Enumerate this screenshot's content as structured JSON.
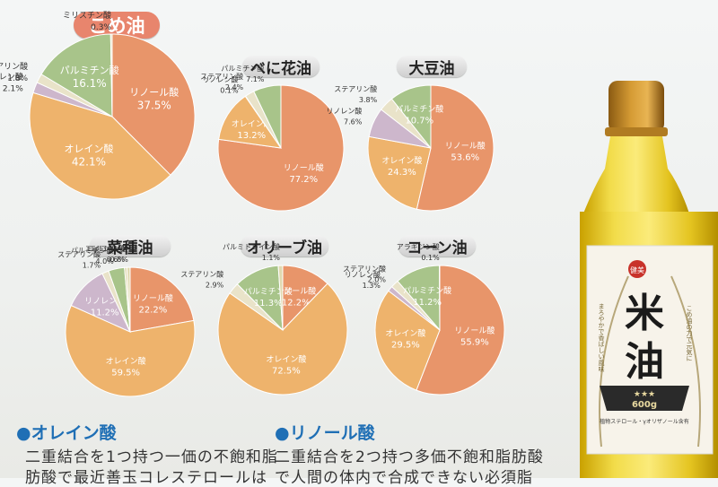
{
  "colors": {
    "linoleic": "#e8956a",
    "oleic": "#eeb36c",
    "palmitic": "#a8c48a",
    "linolenic": "#cdb7cc",
    "stearic": "#e9e3c9",
    "minor": "#e0d9b0",
    "title_pill_primary": "#e8856d",
    "section_head": "#1f6fb5"
  },
  "chart_data": [
    {
      "type": "pie",
      "title": "こめ油",
      "slices": [
        {
          "label": "リノール酸",
          "value": 37.5,
          "color_key": "linoleic"
        },
        {
          "label": "オレイン酸",
          "value": 42.1,
          "color_key": "oleic"
        },
        {
          "label": "リノレン酸",
          "value": 2.1,
          "color_key": "linolenic"
        },
        {
          "label": "ステアリン酸",
          "value": 1.8,
          "color_key": "stearic"
        },
        {
          "label": "パルミチン酸",
          "value": 16.1,
          "color_key": "palmitic"
        },
        {
          "label": "ミリスチン酸",
          "value": 0.3,
          "color_key": "minor"
        }
      ]
    },
    {
      "type": "pie",
      "title": "べに花油",
      "slices": [
        {
          "label": "リノール酸",
          "value": 77.2,
          "color_key": "linoleic"
        },
        {
          "label": "オレイン酸",
          "value": 13.2,
          "color_key": "oleic"
        },
        {
          "label": "リノレン酸",
          "value": 0.1,
          "color_key": "linolenic"
        },
        {
          "label": "ステアリン酸",
          "value": 2.4,
          "color_key": "stearic"
        },
        {
          "label": "パルミチン酸",
          "value": 7.1,
          "color_key": "palmitic"
        }
      ]
    },
    {
      "type": "pie",
      "title": "大豆油",
      "slices": [
        {
          "label": "リノール酸",
          "value": 53.6,
          "color_key": "linoleic"
        },
        {
          "label": "オレイン酸",
          "value": 24.3,
          "color_key": "oleic"
        },
        {
          "label": "リノレン酸",
          "value": 7.6,
          "color_key": "linolenic"
        },
        {
          "label": "ステアリン酸",
          "value": 3.8,
          "color_key": "stearic"
        },
        {
          "label": "パルミチン酸",
          "value": 10.7,
          "color_key": "palmitic"
        }
      ]
    },
    {
      "type": "pie",
      "title": "菜種油",
      "slices": [
        {
          "label": "リノール酸",
          "value": 22.2,
          "color_key": "linoleic"
        },
        {
          "label": "オレイン酸",
          "value": 59.5,
          "color_key": "oleic"
        },
        {
          "label": "リノレン酸",
          "value": 11.2,
          "color_key": "linolenic"
        },
        {
          "label": "ステアリン酸",
          "value": 1.7,
          "color_key": "stearic"
        },
        {
          "label": "パルミチン酸",
          "value": 4.0,
          "color_key": "palmitic"
        },
        {
          "label": "エルシン酸",
          "value": 0.6,
          "color_key": "minor"
        },
        {
          "label": "エイコセン酸",
          "value": 0.8,
          "color_key": "minor"
        }
      ]
    },
    {
      "type": "pie",
      "title": "オリーブ油",
      "slices": [
        {
          "label": "リノール酸",
          "value": 12.2,
          "color_key": "linoleic"
        },
        {
          "label": "オレイン酸",
          "value": 72.5,
          "color_key": "oleic"
        },
        {
          "label": "ステアリン酸",
          "value": 2.9,
          "color_key": "stearic"
        },
        {
          "label": "パルミチン酸",
          "value": 11.3,
          "color_key": "palmitic"
        },
        {
          "label": "パルミトレイン酸",
          "value": 1.1,
          "color_key": "minor"
        }
      ]
    },
    {
      "type": "pie",
      "title": "コーン油",
      "slices": [
        {
          "label": "リノール酸",
          "value": 55.9,
          "color_key": "linoleic"
        },
        {
          "label": "オレイン酸",
          "value": 29.5,
          "color_key": "oleic"
        },
        {
          "label": "リノレン酸",
          "value": 1.3,
          "color_key": "linolenic"
        },
        {
          "label": "ステアリン酸",
          "value": 2.0,
          "color_key": "stearic"
        },
        {
          "label": "パルミチン酸",
          "value": 11.2,
          "color_key": "palmitic"
        },
        {
          "label": "アラギジン酸",
          "value": 0.1,
          "color_key": "minor"
        }
      ]
    }
  ],
  "sections": [
    {
      "head": "●オレイン酸",
      "lines": [
        "二重結合を1つ持つ一価の不飽和脂",
        "肪酸で最近善玉コレステロールは"
      ]
    },
    {
      "head": "●リノール酸",
      "lines": [
        "二重結合を2つ持つ多価不飽和脂肪酸",
        "で人間の体内で合成できない必須脂"
      ]
    }
  ],
  "product": {
    "name": "米油",
    "badge": "健美",
    "weight": "600g",
    "stars": "★★★",
    "side_text_left": "まろやかで香ばしい風味",
    "side_text_right": "こめ油の力で元気に",
    "bottom_text": "植物ステロール・γオリザノール含有"
  }
}
